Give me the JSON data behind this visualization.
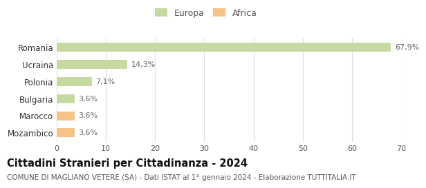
{
  "categories": [
    "Mozambico",
    "Marocco",
    "Bulgaria",
    "Polonia",
    "Ucraina",
    "Romania"
  ],
  "values": [
    3.6,
    3.6,
    3.6,
    7.1,
    14.3,
    67.9
  ],
  "labels": [
    "3,6%",
    "3,6%",
    "3,6%",
    "7,1%",
    "14,3%",
    "67,9%"
  ],
  "colors": [
    "#f5c28a",
    "#f5c28a",
    "#c5d9a0",
    "#c5d9a0",
    "#c5d9a0",
    "#c5d9a0"
  ],
  "continent": [
    "Africa",
    "Africa",
    "Europa",
    "Europa",
    "Europa",
    "Europa"
  ],
  "legend_items": [
    {
      "label": "Europa",
      "color": "#c5d9a0"
    },
    {
      "label": "Africa",
      "color": "#f5c28a"
    }
  ],
  "xlim": [
    0,
    70
  ],
  "xticks": [
    0,
    10,
    20,
    30,
    40,
    50,
    60,
    70
  ],
  "title": "Cittadini Stranieri per Cittadinanza - 2024",
  "subtitle": "COMUNE DI MAGLIANO VETERE (SA) - Dati ISTAT al 1° gennaio 2024 - Elaborazione TUTTITALIA.IT",
  "title_fontsize": 10.5,
  "subtitle_fontsize": 7.5,
  "bar_height": 0.52,
  "background_color": "#ffffff",
  "grid_color": "#dddddd",
  "label_fontsize": 8,
  "ytick_fontsize": 8.5,
  "xtick_fontsize": 8
}
